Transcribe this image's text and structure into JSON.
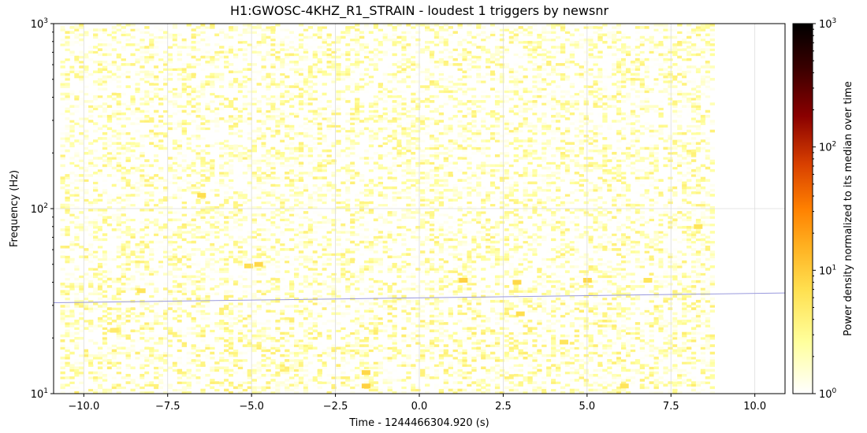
{
  "chart_data": {
    "type": "heatmap",
    "title": "H1:GWOSC-4KHZ_R1_STRAIN - loudest 1 triggers by newsnr",
    "xlabel": "Time - 1244466304.920 (s)",
    "ylabel": "Frequency (Hz)",
    "xlim": [
      -10.9,
      10.9
    ],
    "ylim": [
      10,
      1000
    ],
    "yscale": "log",
    "x_tick_labels": [
      "−10.0",
      "−7.5",
      "−5.0",
      "−2.5",
      "0.0",
      "2.5",
      "5.0",
      "7.5",
      "10.0"
    ],
    "x_tick_values": [
      -10,
      -7.5,
      -5,
      -2.5,
      0,
      2.5,
      5,
      7.5,
      10
    ],
    "y_ticks": [
      {
        "value": 10,
        "base": "10",
        "exp": "1"
      },
      {
        "value": 100,
        "base": "10",
        "exp": "2"
      },
      {
        "value": 1000,
        "base": "10",
        "exp": "3"
      }
    ],
    "grid": true,
    "colorbar": {
      "label": "Power density normalized to its median over time",
      "scale": "log",
      "range": [
        1,
        1000
      ],
      "colormap": "afmhot_r",
      "ticks": [
        {
          "value": 1,
          "base": "10",
          "exp": "0"
        },
        {
          "value": 10,
          "base": "10",
          "exp": "1"
        },
        {
          "value": 100,
          "base": "10",
          "exp": "2"
        },
        {
          "value": 1000,
          "base": "10",
          "exp": "3"
        }
      ]
    },
    "data_extent_time": [
      -10.7,
      8.8
    ],
    "hot_spots": [
      {
        "t": -1.6,
        "f": 11,
        "power": 9
      },
      {
        "t": -1.6,
        "f": 13,
        "power": 8
      },
      {
        "t": -4.8,
        "f": 50,
        "power": 8
      },
      {
        "t": -5.1,
        "f": 49,
        "power": 7
      },
      {
        "t": -6.5,
        "f": 118,
        "power": 7
      },
      {
        "t": 1.3,
        "f": 41,
        "power": 9
      },
      {
        "t": 2.9,
        "f": 40,
        "power": 8
      },
      {
        "t": 5.0,
        "f": 41,
        "power": 8
      },
      {
        "t": 6.8,
        "f": 41,
        "power": 6
      },
      {
        "t": 3.0,
        "f": 27,
        "power": 7
      },
      {
        "t": -8.3,
        "f": 36,
        "power": 6
      },
      {
        "t": -9.1,
        "f": 22,
        "power": 5
      },
      {
        "t": 6.1,
        "f": 11,
        "power": 6
      },
      {
        "t": 4.3,
        "f": 19,
        "power": 6
      },
      {
        "t": 8.3,
        "f": 80,
        "power": 6
      }
    ],
    "track_line": {
      "color": "#9999dd",
      "points": [
        [
          -10.9,
          31
        ],
        [
          10.9,
          35
        ]
      ]
    }
  }
}
